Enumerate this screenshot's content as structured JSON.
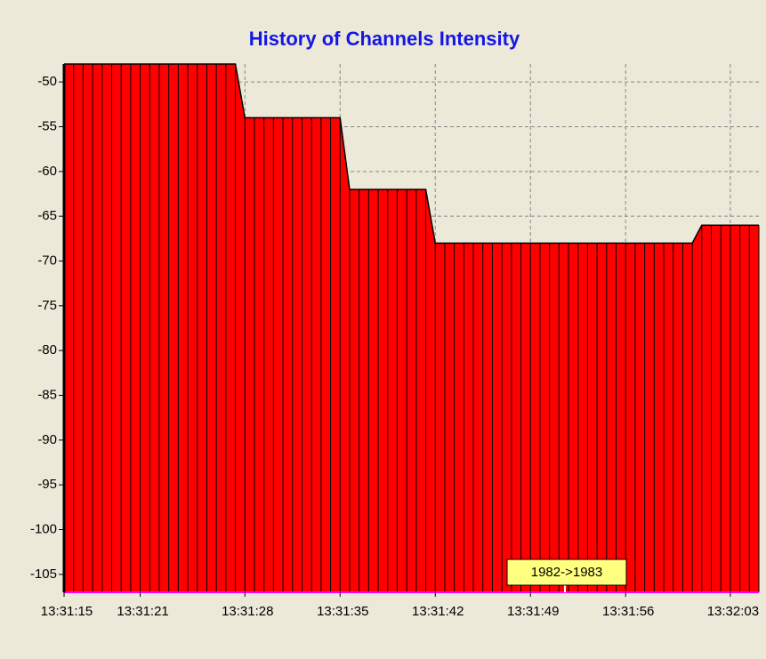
{
  "chart_data": {
    "type": "area",
    "title": "History of Channels Intensity",
    "categories": [
      "13:31:15",
      null,
      null,
      null,
      null,
      null,
      null,
      null,
      "13:31:21",
      null,
      null,
      null,
      null,
      null,
      null,
      null,
      null,
      null,
      null,
      "13:31:28",
      null,
      null,
      null,
      null,
      null,
      null,
      null,
      null,
      null,
      "13:31:35",
      null,
      null,
      null,
      null,
      null,
      null,
      null,
      null,
      null,
      "13:31:42",
      null,
      null,
      null,
      null,
      null,
      null,
      null,
      null,
      null,
      "13:31:49",
      null,
      null,
      null,
      null,
      null,
      null,
      null,
      null,
      null,
      "13:31:56",
      null,
      null,
      null,
      null,
      null,
      null,
      null,
      null,
      null,
      null,
      "13:32:03",
      null,
      null,
      null
    ],
    "values": [
      -48,
      -48,
      -48,
      -48,
      -48,
      -48,
      -48,
      -48,
      -48,
      -48,
      -48,
      -48,
      -48,
      -48,
      -48,
      -48,
      -48,
      -48,
      -48,
      -54,
      -54,
      -54,
      -54,
      -54,
      -54,
      -54,
      -54,
      -54,
      -54,
      -54,
      -62,
      -62,
      -62,
      -62,
      -62,
      -62,
      -62,
      -62,
      -62,
      -68,
      -68,
      -68,
      -68,
      -68,
      -68,
      -68,
      -68,
      -68,
      -68,
      -68,
      -68,
      -68,
      -68,
      -68,
      -68,
      -68,
      -68,
      -68,
      -68,
      -68,
      -68,
      -68,
      -68,
      -68,
      -68,
      -68,
      -68,
      -66,
      -66,
      -66,
      -66,
      -66,
      -66,
      -66
    ],
    "color": "#ff0000",
    "ylim": [
      -107,
      -48
    ],
    "yticks": [
      -50,
      -55,
      -60,
      -65,
      -70,
      -75,
      -80,
      -85,
      -90,
      -95,
      -100,
      -105
    ],
    "grid": true,
    "annotation": "1982->1983"
  }
}
